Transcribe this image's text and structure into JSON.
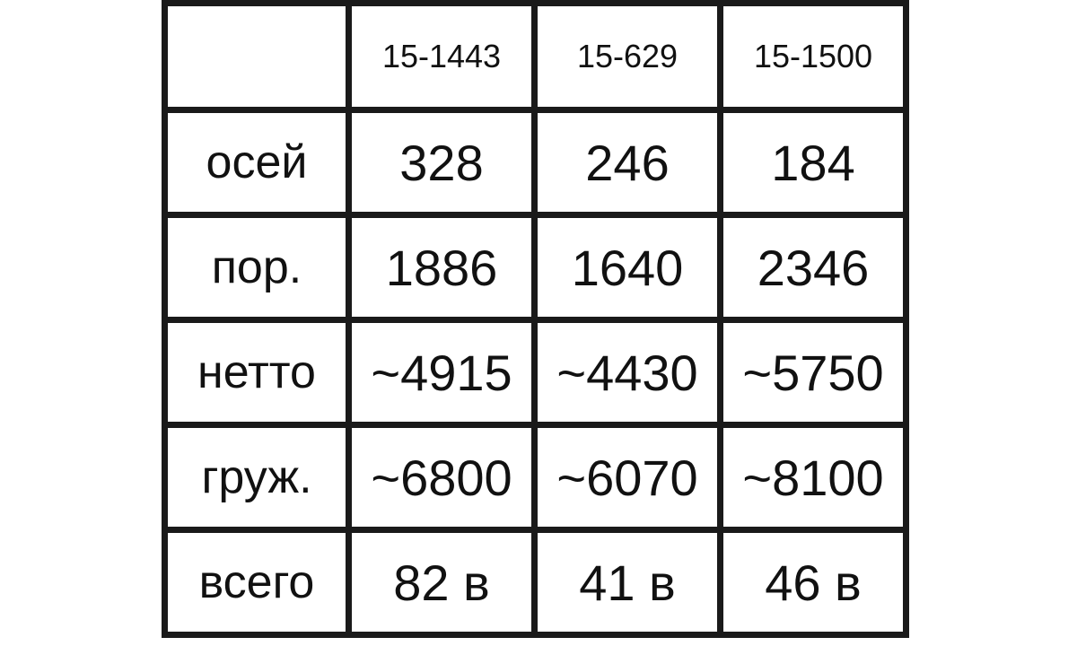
{
  "table": {
    "header": [
      "",
      "15-1443",
      "15-629",
      "15-1500"
    ],
    "rows": [
      {
        "label": "осей",
        "values": [
          "328",
          "246",
          "184"
        ]
      },
      {
        "label": "пор.",
        "values": [
          "1886",
          "1640",
          "2346"
        ]
      },
      {
        "label": "нетто",
        "values": [
          "~4915",
          "~4430",
          "~5750"
        ]
      },
      {
        "label": "груж.",
        "values": [
          "~6800",
          "~6070",
          "~8100"
        ]
      },
      {
        "label": "всего",
        "values": [
          "82 в",
          "41 в",
          "46 в"
        ]
      }
    ]
  }
}
